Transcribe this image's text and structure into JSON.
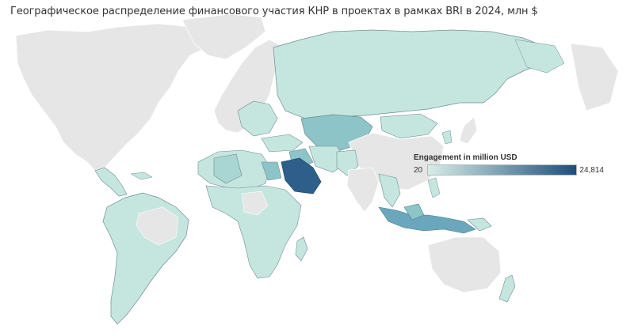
{
  "title": "Географическое распределение финансового участия КНР в проектах в рамках BRI в 2024, млн $",
  "legend": {
    "title": "Engagement in million USD",
    "min_label": "20",
    "max_label": "24,814",
    "min_value": 20,
    "max_value": 24814,
    "color_low": "#d6eee9",
    "color_high": "#1e4e79"
  },
  "colors": {
    "land_default": "#e6e6e6",
    "border": "#ffffff",
    "bri_light": "#c5e6df",
    "bri_border": "#6e8c96",
    "ocean": "#ffffff"
  },
  "highlighted_regions": [
    {
      "name": "saudi-arabia",
      "level": 1.0
    },
    {
      "name": "kazakhstan",
      "level": 0.35
    },
    {
      "name": "indonesia",
      "level": 0.45
    },
    {
      "name": "egypt",
      "level": 0.4
    },
    {
      "name": "iraq",
      "level": 0.35
    },
    {
      "name": "algeria",
      "level": 0.2
    }
  ]
}
